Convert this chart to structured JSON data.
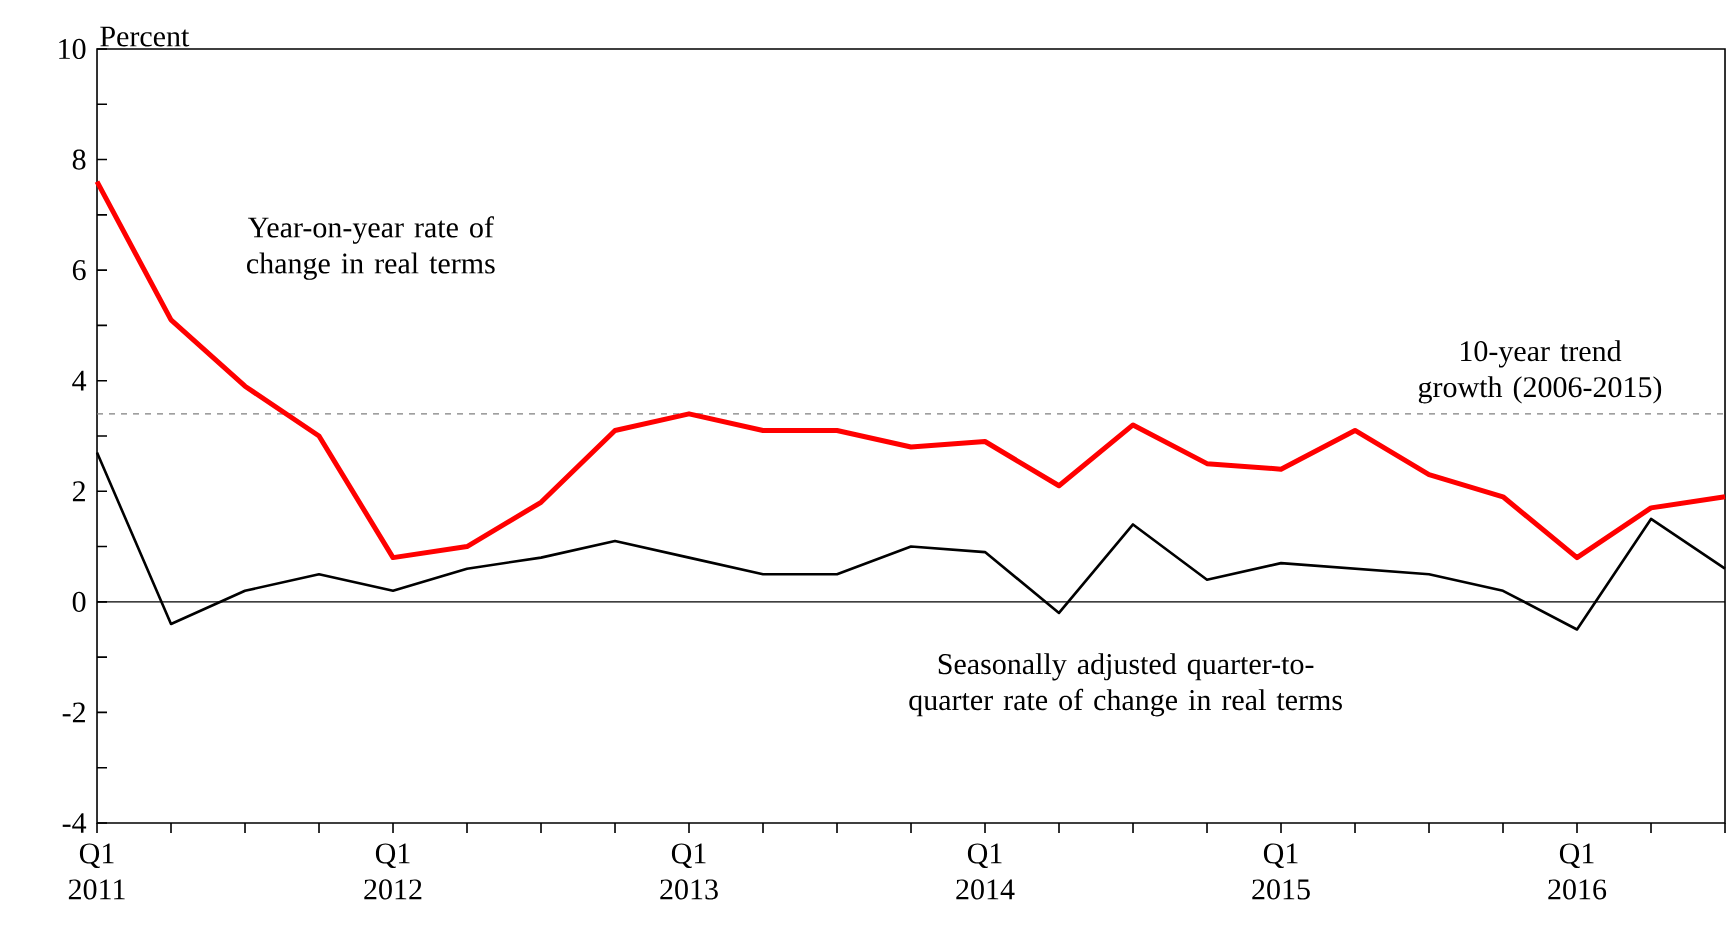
{
  "chart_data": {
    "type": "line",
    "ylabel": "Percent",
    "categories": [
      "Q1 2011",
      null,
      null,
      null,
      "Q1 2012",
      null,
      null,
      null,
      "Q1 2013",
      null,
      null,
      null,
      "Q1 2014",
      null,
      null,
      null,
      "Q1 2015",
      null,
      null,
      null,
      "Q1 2016",
      null,
      null
    ],
    "series": [
      {
        "name": "Year-on-year rate of change in real terms",
        "color": "#ff0000",
        "values": [
          7.6,
          5.1,
          3.9,
          3.0,
          0.8,
          1.0,
          1.8,
          3.1,
          3.4,
          3.1,
          3.1,
          2.8,
          2.9,
          2.1,
          3.2,
          2.5,
          2.4,
          3.1,
          2.3,
          1.9,
          0.8,
          1.7,
          1.9
        ]
      },
      {
        "name": "Seasonally adjusted quarter-to-quarter rate of change in real terms",
        "color": "#000000",
        "values": [
          2.7,
          -0.4,
          0.2,
          0.5,
          0.2,
          0.6,
          0.8,
          1.1,
          0.8,
          0.5,
          0.5,
          1.0,
          0.9,
          -0.2,
          1.4,
          0.4,
          0.7,
          0.6,
          0.5,
          0.2,
          -0.5,
          1.5,
          0.6
        ]
      }
    ],
    "ylim": [
      -4,
      10
    ],
    "yticks": [
      -4,
      -2,
      0,
      2,
      4,
      6,
      8,
      10
    ],
    "ref_lines": [
      {
        "axis": "y",
        "value": 3.4,
        "label": "10-year trend growth (2006-2015)",
        "color": "#808080",
        "line_style": "dashed"
      },
      {
        "axis": "y",
        "value": 0,
        "color": "#000000",
        "line_style": "solid"
      }
    ],
    "marker": "none",
    "line_style": "solid"
  }
}
